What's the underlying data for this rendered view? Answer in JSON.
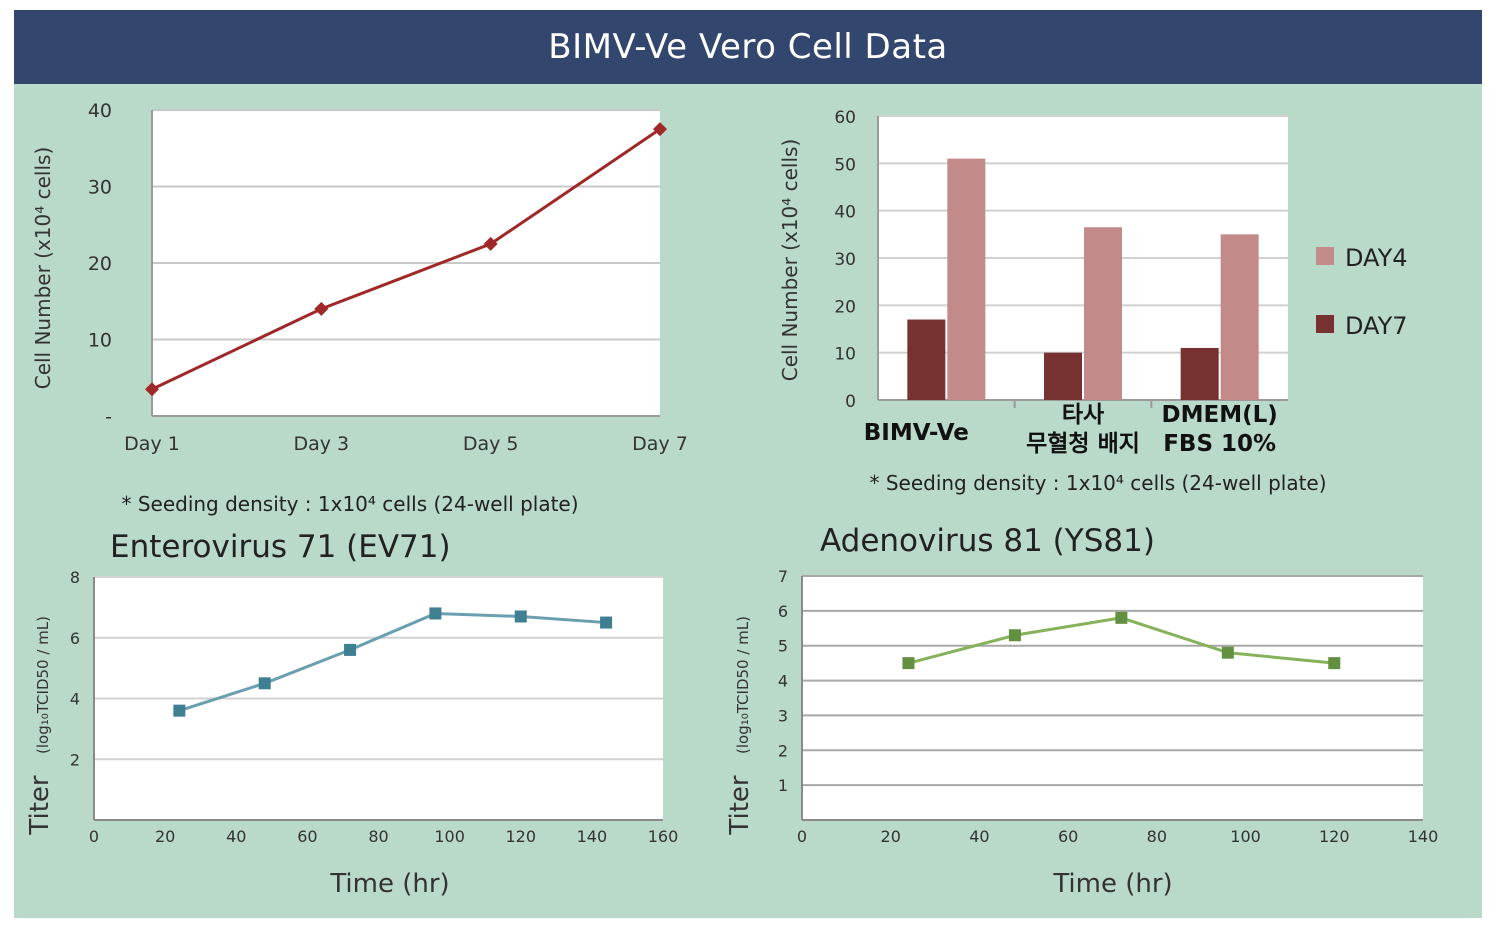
{
  "page": {
    "title": "BIMV-Ve Vero Cell Data"
  },
  "chart_data": [
    {
      "id": "growth",
      "type": "line",
      "title": "",
      "categories": [
        "Day 1",
        "Day 3",
        "Day 5",
        "Day 7"
      ],
      "series": [
        {
          "name": "BIMV-Ve",
          "values": [
            3.5,
            14,
            22.5,
            37.5
          ]
        }
      ],
      "ylabel": "Cell  Number (x10⁴ cells)",
      "yticks": [
        "-",
        "10",
        "20",
        "30",
        "40"
      ],
      "ylim": [
        0,
        40
      ],
      "grid": true,
      "note": "* Seeding density : 1x10⁴ cells (24-well plate)",
      "colors": {
        "line": "#a02828"
      }
    },
    {
      "id": "media",
      "type": "bar",
      "categories": [
        "BIMV-Ve",
        "타사\n무혈청 배지",
        "DMEM(L)\nFBS 10%"
      ],
      "series": [
        {
          "name": "DAY7",
          "values": [
            17,
            10,
            11
          ],
          "color": "#783131"
        },
        {
          "name": "DAY4",
          "values": [
            51,
            36.5,
            35
          ],
          "color": "#c38a8a"
        }
      ],
      "ylabel": "Cell  Number (x10⁴ cells)",
      "yticks": [
        "0",
        "10",
        "20",
        "30",
        "40",
        "50",
        "60"
      ],
      "ylim": [
        0,
        60
      ],
      "legend": [
        "DAY4",
        "DAY7"
      ],
      "legend_position": "right",
      "note": "* Seeding density : 1x10⁴ cells (24-well plate)"
    },
    {
      "id": "ev71",
      "type": "line",
      "title": "Enterovirus 71 (EV71)",
      "x": [
        24,
        48,
        72,
        96,
        120,
        144
      ],
      "series": [
        {
          "name": "EV71",
          "values": [
            3.6,
            4.5,
            5.6,
            6.8,
            6.7,
            6.5
          ]
        }
      ],
      "xlabel": "Time (hr)",
      "ylabel_main": "Titer",
      "ylabel_unit": "(log₁₀TCID50 / mL)",
      "xlim": [
        0,
        160
      ],
      "xticks": [
        "0",
        "20",
        "40",
        "60",
        "80",
        "100",
        "120",
        "140",
        "160"
      ],
      "ylim": [
        0,
        8
      ],
      "yticks": [
        "2",
        "4",
        "6",
        "8"
      ],
      "colors": {
        "line": "#6a9fb0",
        "marker": "#3e7f92"
      }
    },
    {
      "id": "ys81",
      "type": "line",
      "title": "Adenovirus 81 (YS81)",
      "x": [
        24,
        48,
        72,
        96,
        120
      ],
      "series": [
        {
          "name": "YS81",
          "values": [
            4.5,
            5.3,
            5.8,
            4.8,
            4.5
          ]
        }
      ],
      "xlabel": "Time (hr)",
      "ylabel_main": "Titer",
      "ylabel_unit": "(log₁₀TCID50 / mL)",
      "xlim": [
        0,
        140
      ],
      "xticks": [
        "0",
        "20",
        "40",
        "60",
        "80",
        "100",
        "120",
        "140"
      ],
      "ylim": [
        0,
        7
      ],
      "yticks": [
        "1",
        "2",
        "3",
        "4",
        "5",
        "6",
        "7"
      ],
      "colors": {
        "line": "#86b25a",
        "marker": "#629040"
      }
    }
  ]
}
